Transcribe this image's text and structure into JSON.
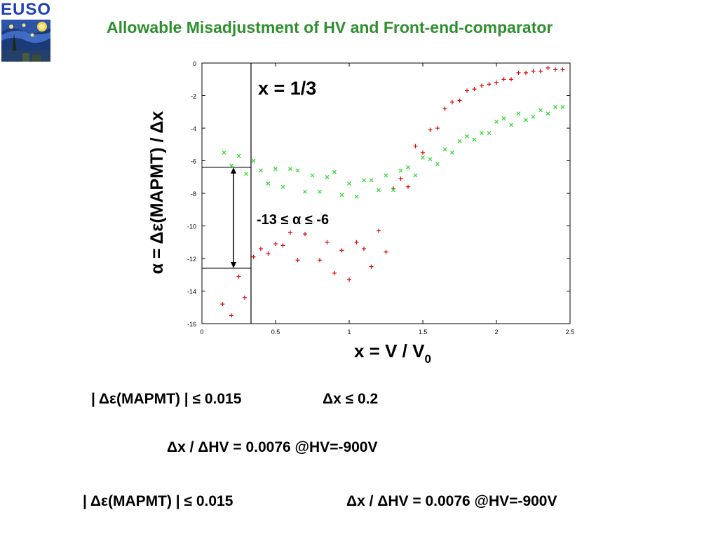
{
  "logo": {
    "text": "EUSO"
  },
  "header": {
    "title": "Allowable Misadjustment of HV and Front-end-comparator"
  },
  "chart_data": {
    "type": "scatter",
    "title": "",
    "xlabel": "x = V / V",
    "xlabel_sub": "0",
    "ylabel": "α = Δε(MAPMT) / Δx",
    "xlim": [
      0,
      2.5
    ],
    "ylim": [
      -16,
      0
    ],
    "x_ticks": [
      "0",
      "0.5",
      "1",
      "1.5",
      "2",
      "2.5"
    ],
    "y_ticks": [
      "0",
      "-2",
      "-4",
      "-6",
      "-8",
      "-10",
      "-12",
      "-14",
      "-16"
    ],
    "grid": false,
    "legend": "none",
    "series": [
      {
        "marker": "plus",
        "color": "#dd0000",
        "points": [
          [
            0.14,
            -14.8
          ],
          [
            0.2,
            -15.5
          ],
          [
            0.25,
            -13.1
          ],
          [
            0.29,
            -14.4
          ],
          [
            0.35,
            -11.9
          ],
          [
            0.4,
            -11.4
          ],
          [
            0.45,
            -11.7
          ],
          [
            0.5,
            -11.1
          ],
          [
            0.55,
            -11.2
          ],
          [
            0.6,
            -10.4
          ],
          [
            0.65,
            -12.1
          ],
          [
            0.7,
            -10.5
          ],
          [
            0.8,
            -12.1
          ],
          [
            0.85,
            -11.0
          ],
          [
            0.9,
            -12.9
          ],
          [
            0.95,
            -11.5
          ],
          [
            1.0,
            -13.3
          ],
          [
            1.05,
            -11.0
          ],
          [
            1.1,
            -11.4
          ],
          [
            1.15,
            -12.5
          ],
          [
            1.2,
            -10.3
          ],
          [
            1.25,
            -11.6
          ],
          [
            1.3,
            -7.7
          ],
          [
            1.35,
            -7.1
          ],
          [
            1.4,
            -7.6
          ],
          [
            1.45,
            -5.1
          ],
          [
            1.5,
            -5.5
          ],
          [
            1.55,
            -4.1
          ],
          [
            1.6,
            -4.0
          ],
          [
            1.65,
            -2.8
          ],
          [
            1.7,
            -2.4
          ],
          [
            1.75,
            -2.3
          ],
          [
            1.8,
            -1.7
          ],
          [
            1.85,
            -1.6
          ],
          [
            1.9,
            -1.4
          ],
          [
            1.95,
            -1.3
          ],
          [
            2.0,
            -1.2
          ],
          [
            2.05,
            -1.0
          ],
          [
            2.1,
            -1.0
          ],
          [
            2.15,
            -0.6
          ],
          [
            2.2,
            -0.6
          ],
          [
            2.25,
            -0.5
          ],
          [
            2.3,
            -0.5
          ],
          [
            2.35,
            -0.3
          ],
          [
            2.4,
            -0.4
          ],
          [
            2.45,
            -0.4
          ]
        ]
      },
      {
        "marker": "cross",
        "color": "#33dd33",
        "points": [
          [
            0.15,
            -5.5
          ],
          [
            0.2,
            -6.3
          ],
          [
            0.25,
            -5.7
          ],
          [
            0.3,
            -6.8
          ],
          [
            0.35,
            -6.0
          ],
          [
            0.4,
            -6.6
          ],
          [
            0.45,
            -7.4
          ],
          [
            0.5,
            -6.5
          ],
          [
            0.55,
            -7.6
          ],
          [
            0.6,
            -6.5
          ],
          [
            0.65,
            -6.6
          ],
          [
            0.7,
            -7.9
          ],
          [
            0.75,
            -6.9
          ],
          [
            0.8,
            -7.9
          ],
          [
            0.85,
            -7.0
          ],
          [
            0.9,
            -6.7
          ],
          [
            0.95,
            -8.1
          ],
          [
            1.0,
            -7.4
          ],
          [
            1.05,
            -8.2
          ],
          [
            1.1,
            -7.2
          ],
          [
            1.15,
            -7.2
          ],
          [
            1.2,
            -7.8
          ],
          [
            1.25,
            -6.9
          ],
          [
            1.3,
            -7.8
          ],
          [
            1.35,
            -6.6
          ],
          [
            1.4,
            -6.4
          ],
          [
            1.45,
            -6.9
          ],
          [
            1.5,
            -5.8
          ],
          [
            1.55,
            -5.9
          ],
          [
            1.6,
            -6.2
          ],
          [
            1.65,
            -5.3
          ],
          [
            1.7,
            -5.5
          ],
          [
            1.75,
            -4.8
          ],
          [
            1.8,
            -4.5
          ],
          [
            1.85,
            -4.7
          ],
          [
            1.9,
            -4.3
          ],
          [
            1.95,
            -4.3
          ],
          [
            2.0,
            -3.6
          ],
          [
            2.05,
            -3.4
          ],
          [
            2.1,
            -3.8
          ],
          [
            2.15,
            -3.1
          ],
          [
            2.2,
            -3.5
          ],
          [
            2.25,
            -3.3
          ],
          [
            2.3,
            -2.9
          ],
          [
            2.35,
            -3.1
          ],
          [
            2.4,
            -2.7
          ],
          [
            2.45,
            -2.7
          ]
        ]
      }
    ],
    "annotations": {
      "vline_label": "x = 1/3",
      "vline_x": 0.3333,
      "range_label": "-13 ≤ α ≤ -6",
      "range_upper": -6.4,
      "range_lower": -12.6
    }
  },
  "equations": {
    "line1_a": "| Δε(MAPMT) | ≤ 0.015",
    "line1_b": "Δx  ≤ 0.2",
    "line2": "Δx / ΔHV = 0.0076  @HV=-900V",
    "line3_a": "| Δε(MAPMT) | ≤ 0.015",
    "line3_b": "Δx / ΔHV = 0.0076  @HV=-900V"
  }
}
